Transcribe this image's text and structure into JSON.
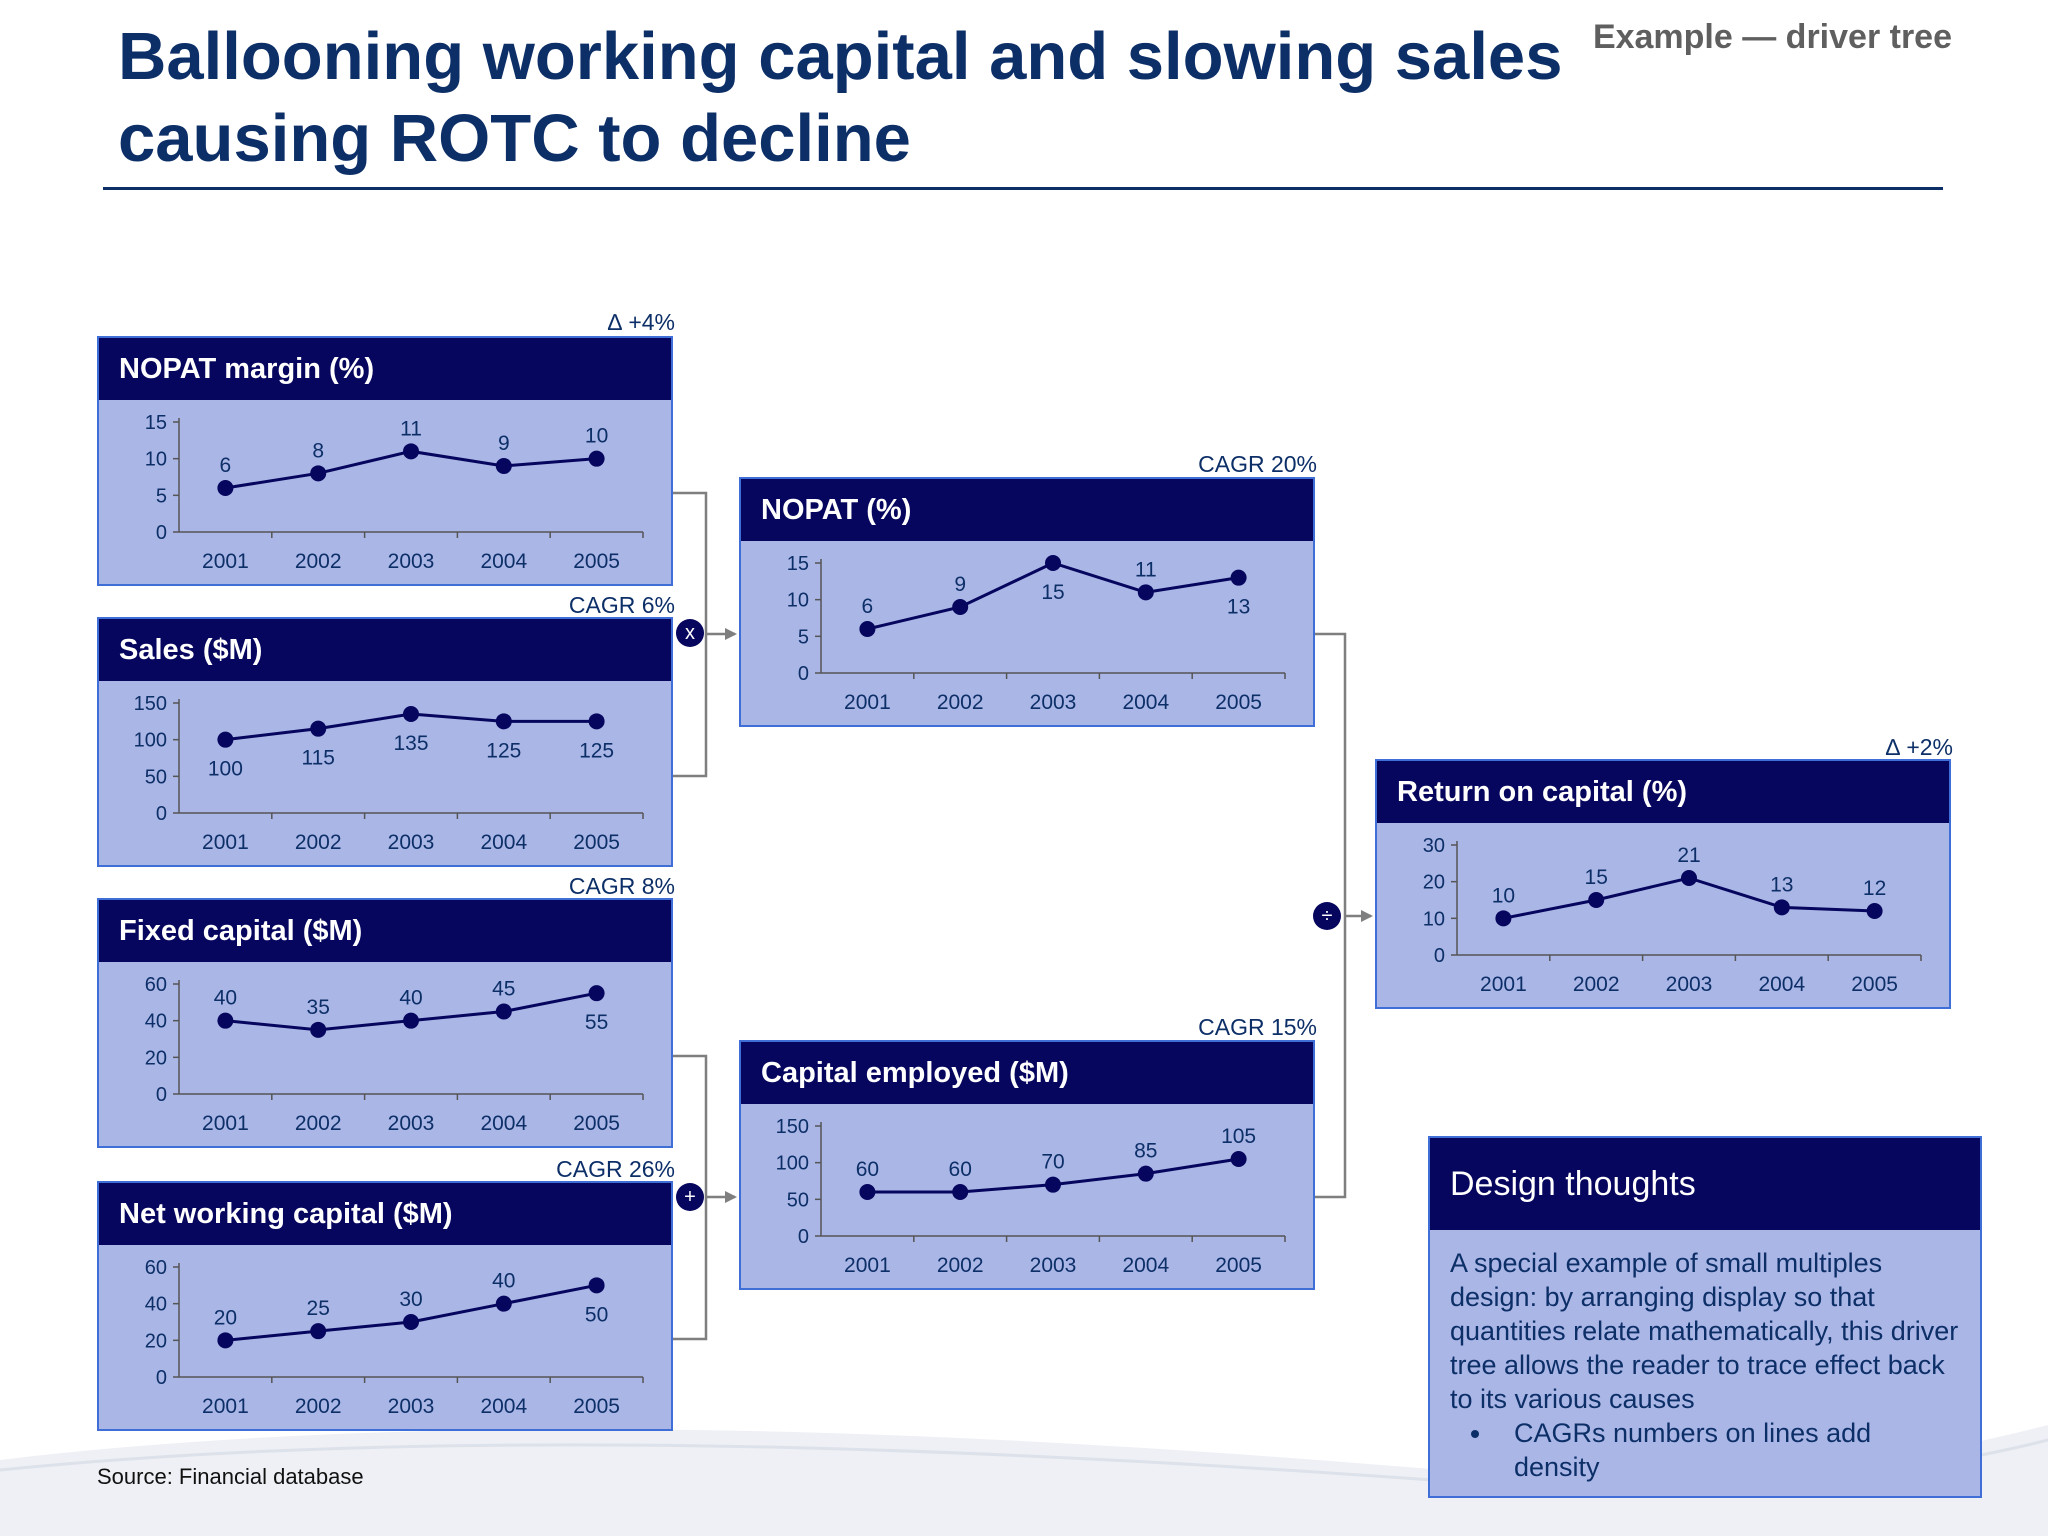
{
  "header": {
    "title": "Ballooning working capital and slowing sales causing ROTC to decline",
    "tag": "Example — driver tree"
  },
  "operators": {
    "multiply": "x",
    "add": "+",
    "divide": "÷"
  },
  "footer": {
    "source": "Source: Financial database"
  },
  "design_thoughts": {
    "title": "Design thoughts",
    "body": "A special example of small multiples design: by arranging display so that quantities relate mathematically, this driver tree allows the reader to trace effect back to its various causes",
    "bullet": "CAGRs numbers on lines add density"
  },
  "colors": {
    "header_bg": "#06065e",
    "panel_bg": "#aab6e6",
    "panel_border": "#3f6fd6",
    "line": "#06065e",
    "title": "#0d2f68"
  },
  "chart_data": [
    {
      "id": "nopat_margin",
      "type": "line",
      "title": "NOPAT margin (%)",
      "note": "∆ +4%",
      "x": [
        "2001",
        "2002",
        "2003",
        "2004",
        "2005"
      ],
      "values": [
        6,
        8,
        11,
        9,
        10
      ],
      "ylim": [
        0,
        15
      ],
      "yticks": [
        0,
        5,
        10,
        15
      ],
      "label_pos": [
        "above",
        "above",
        "above",
        "above",
        "above"
      ]
    },
    {
      "id": "sales",
      "type": "line",
      "title": "Sales ($M)",
      "note": "CAGR 6%",
      "x": [
        "2001",
        "2002",
        "2003",
        "2004",
        "2005"
      ],
      "values": [
        100,
        115,
        135,
        125,
        125
      ],
      "ylim": [
        0,
        150
      ],
      "yticks": [
        0,
        50,
        100,
        150
      ],
      "label_pos": [
        "below",
        "below",
        "below",
        "below",
        "below"
      ]
    },
    {
      "id": "fixed_capital",
      "type": "line",
      "title": "Fixed capital ($M)",
      "note": "CAGR 8%",
      "x": [
        "2001",
        "2002",
        "2003",
        "2004",
        "2005"
      ],
      "values": [
        40,
        35,
        40,
        45,
        55
      ],
      "ylim": [
        0,
        60
      ],
      "yticks": [
        0,
        20,
        40,
        60
      ],
      "label_pos": [
        "above",
        "above",
        "above",
        "above",
        "below"
      ]
    },
    {
      "id": "net_working_capital",
      "type": "line",
      "title": "Net working capital ($M)",
      "note": "CAGR 26%",
      "x": [
        "2001",
        "2002",
        "2003",
        "2004",
        "2005"
      ],
      "values": [
        20,
        25,
        30,
        40,
        50
      ],
      "ylim": [
        0,
        60
      ],
      "yticks": [
        0,
        20,
        40,
        60
      ],
      "label_pos": [
        "above",
        "above",
        "above",
        "above",
        "below"
      ]
    },
    {
      "id": "nopat",
      "type": "line",
      "title": "NOPAT (%)",
      "note": "CAGR 20%",
      "x": [
        "2001",
        "2002",
        "2003",
        "2004",
        "2005"
      ],
      "values": [
        6,
        9,
        15,
        11,
        13
      ],
      "ylim": [
        0,
        15
      ],
      "yticks": [
        0,
        5,
        10,
        15
      ],
      "label_pos": [
        "above",
        "above",
        "below",
        "above",
        "below"
      ]
    },
    {
      "id": "capital_employed",
      "type": "line",
      "title": "Capital employed ($M)",
      "note": "CAGR 15%",
      "x": [
        "2001",
        "2002",
        "2003",
        "2004",
        "2005"
      ],
      "values": [
        60,
        60,
        70,
        85,
        105
      ],
      "ylim": [
        0,
        150
      ],
      "yticks": [
        0,
        50,
        100,
        150
      ],
      "label_pos": [
        "above",
        "above",
        "above",
        "above",
        "above"
      ]
    },
    {
      "id": "return_on_capital",
      "type": "line",
      "title": "Return on capital (%)",
      "note": "∆ +2%",
      "x": [
        "2001",
        "2002",
        "2003",
        "2004",
        "2005"
      ],
      "values": [
        10,
        15,
        21,
        13,
        12
      ],
      "ylim": [
        0,
        30
      ],
      "yticks": [
        0,
        10,
        20,
        30
      ],
      "label_pos": [
        "above",
        "above",
        "above",
        "above",
        "above"
      ]
    }
  ]
}
